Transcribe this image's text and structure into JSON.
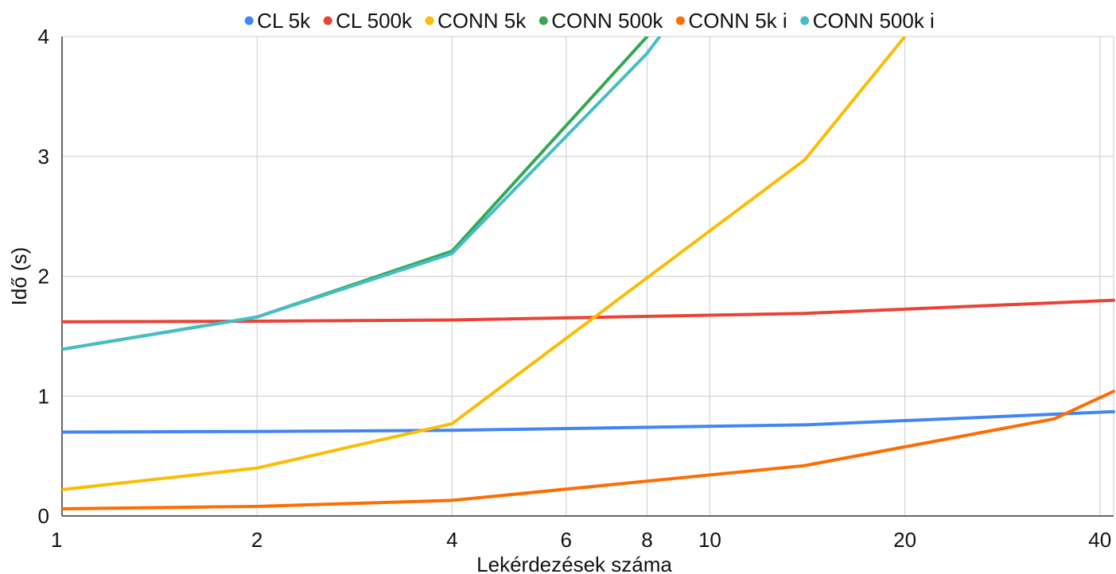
{
  "chart_data": {
    "type": "line",
    "title": "",
    "xlabel": "Lekérdezések száma",
    "ylabel": "Idő (s)",
    "x_scale": "log",
    "xlim": [
      1,
      42
    ],
    "ylim": [
      0,
      4
    ],
    "grid": true,
    "legend_position": "top",
    "x_ticks": [
      1,
      2,
      4,
      6,
      8,
      10,
      20,
      40
    ],
    "y_ticks": [
      0,
      1,
      2,
      3,
      4
    ],
    "series": [
      {
        "name": "CL 5k",
        "color": "#4285F4",
        "points": [
          [
            1,
            0.7
          ],
          [
            2,
            0.705
          ],
          [
            4,
            0.715
          ],
          [
            14,
            0.76
          ],
          [
            42,
            0.87
          ]
        ]
      },
      {
        "name": "CL 500k",
        "color": "#EA4335",
        "points": [
          [
            1,
            1.62
          ],
          [
            2,
            1.625
          ],
          [
            4,
            1.635
          ],
          [
            14,
            1.69
          ],
          [
            42,
            1.8
          ]
        ]
      },
      {
        "name": "CONN 5k",
        "color": "#FBBC04",
        "points": [
          [
            1,
            0.22
          ],
          [
            2,
            0.4
          ],
          [
            4,
            0.77
          ],
          [
            14,
            2.97
          ],
          [
            20,
            4.0
          ]
        ]
      },
      {
        "name": "CONN 500k",
        "color": "#34A853",
        "points": [
          [
            1,
            1.39
          ],
          [
            2,
            1.66
          ],
          [
            4,
            2.21
          ],
          [
            8,
            4.0
          ],
          [
            8.5,
            4.2
          ]
        ]
      },
      {
        "name": "CONN 5k i",
        "color": "#FF6D01",
        "points": [
          [
            1,
            0.06
          ],
          [
            2,
            0.08
          ],
          [
            4,
            0.13
          ],
          [
            14,
            0.42
          ],
          [
            34,
            0.81
          ],
          [
            42,
            1.04
          ]
        ]
      },
      {
        "name": "CONN 500k i",
        "color": "#46BDC6",
        "points": [
          [
            1,
            1.39
          ],
          [
            2,
            1.66
          ],
          [
            4,
            2.19
          ],
          [
            8,
            3.86
          ],
          [
            8.5,
            4.05
          ]
        ]
      }
    ]
  }
}
